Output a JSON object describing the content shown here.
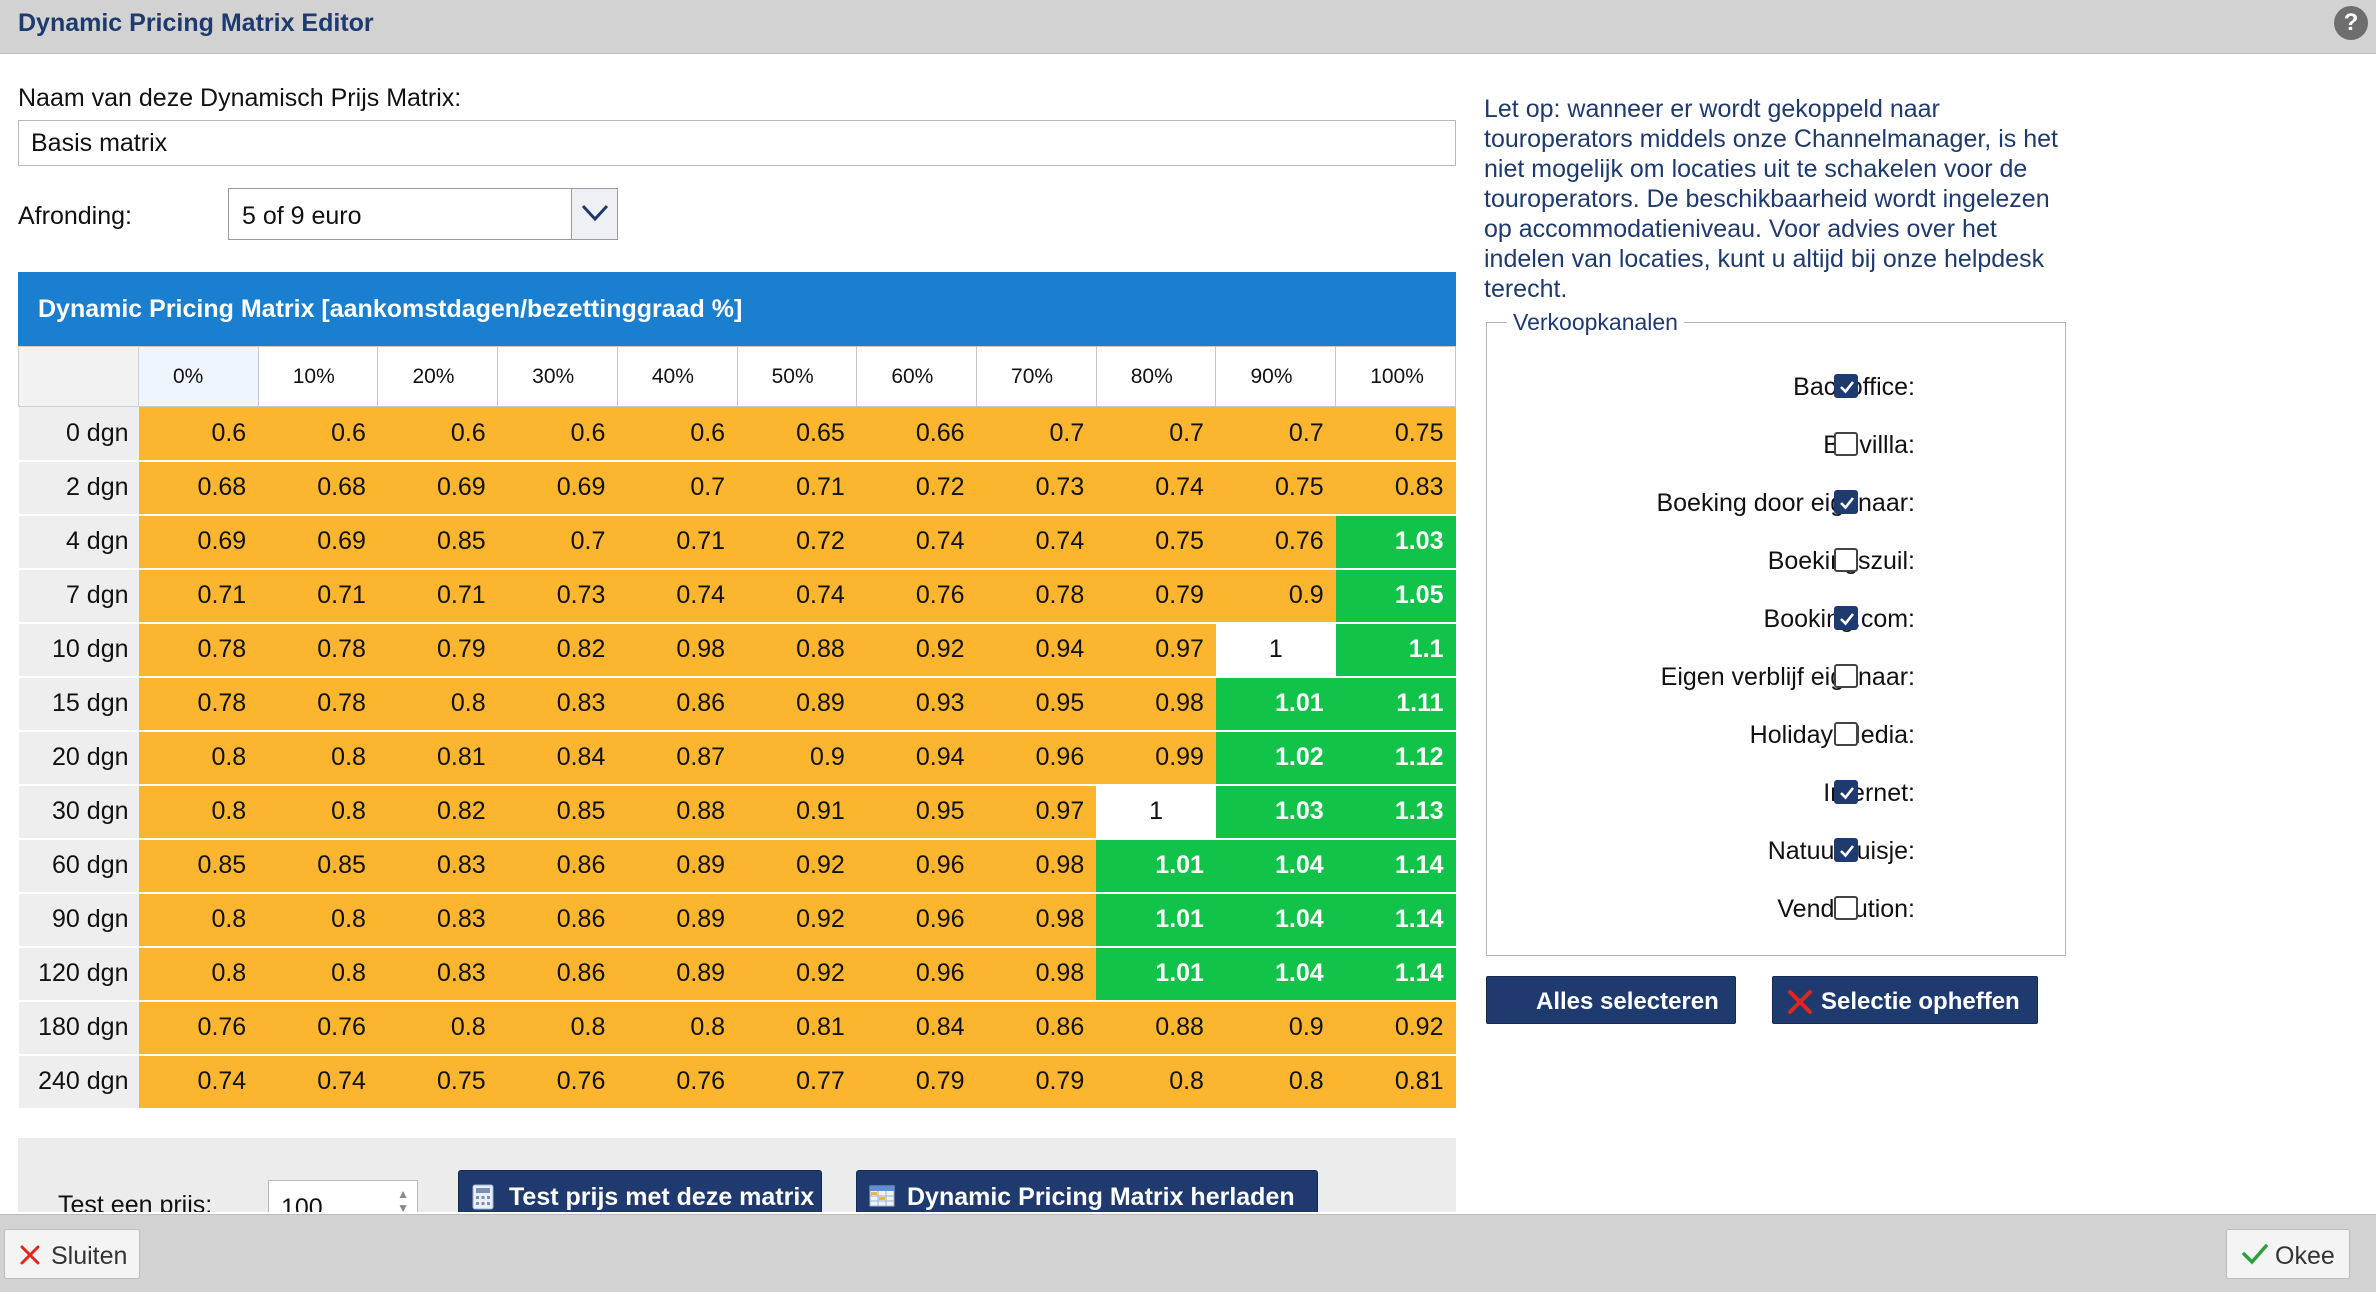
{
  "window": {
    "title": "Dynamic Pricing Matrix Editor",
    "help_label": "?"
  },
  "form": {
    "name_label": "Naam van deze Dynamisch Prijs Matrix:",
    "name_value": "Basis matrix",
    "rounding_label": "Afronding:",
    "rounding_value": "5 of 9 euro"
  },
  "matrix": {
    "title": "Dynamic Pricing Matrix [aankomstdagen/bezettinggraad %]",
    "columns": [
      "0%",
      "10%",
      "20%",
      "30%",
      "40%",
      "50%",
      "60%",
      "70%",
      "80%",
      "90%",
      "100%"
    ],
    "rows": [
      {
        "label": "0 dgn",
        "values": [
          "0.6",
          "0.6",
          "0.6",
          "0.6",
          "0.6",
          "0.65",
          "0.66",
          "0.7",
          "0.7",
          "0.7",
          "0.75"
        ]
      },
      {
        "label": "2 dgn",
        "values": [
          "0.68",
          "0.68",
          "0.69",
          "0.69",
          "0.7",
          "0.71",
          "0.72",
          "0.73",
          "0.74",
          "0.75",
          "0.83"
        ]
      },
      {
        "label": "4 dgn",
        "values": [
          "0.69",
          "0.69",
          "0.85",
          "0.7",
          "0.71",
          "0.72",
          "0.74",
          "0.74",
          "0.75",
          "0.76",
          "1.03"
        ]
      },
      {
        "label": "7 dgn",
        "values": [
          "0.71",
          "0.71",
          "0.71",
          "0.73",
          "0.74",
          "0.74",
          "0.76",
          "0.78",
          "0.79",
          "0.9",
          "1.05"
        ]
      },
      {
        "label": "10 dgn",
        "values": [
          "0.78",
          "0.78",
          "0.79",
          "0.82",
          "0.98",
          "0.88",
          "0.92",
          "0.94",
          "0.97",
          "1",
          "1.1"
        ]
      },
      {
        "label": "15 dgn",
        "values": [
          "0.78",
          "0.78",
          "0.8",
          "0.83",
          "0.86",
          "0.89",
          "0.93",
          "0.95",
          "0.98",
          "1.01",
          "1.11"
        ]
      },
      {
        "label": "20 dgn",
        "values": [
          "0.8",
          "0.8",
          "0.81",
          "0.84",
          "0.87",
          "0.9",
          "0.94",
          "0.96",
          "0.99",
          "1.02",
          "1.12"
        ]
      },
      {
        "label": "30 dgn",
        "values": [
          "0.8",
          "0.8",
          "0.82",
          "0.85",
          "0.88",
          "0.91",
          "0.95",
          "0.97",
          "1",
          "1.03",
          "1.13"
        ]
      },
      {
        "label": "60 dgn",
        "values": [
          "0.85",
          "0.85",
          "0.83",
          "0.86",
          "0.89",
          "0.92",
          "0.96",
          "0.98",
          "1.01",
          "1.04",
          "1.14"
        ]
      },
      {
        "label": "90 dgn",
        "values": [
          "0.8",
          "0.8",
          "0.83",
          "0.86",
          "0.89",
          "0.92",
          "0.96",
          "0.98",
          "1.01",
          "1.04",
          "1.14"
        ]
      },
      {
        "label": "120 dgn",
        "values": [
          "0.8",
          "0.8",
          "0.83",
          "0.86",
          "0.89",
          "0.92",
          "0.96",
          "0.98",
          "1.01",
          "1.04",
          "1.14"
        ]
      },
      {
        "label": "180 dgn",
        "values": [
          "0.76",
          "0.76",
          "0.8",
          "0.8",
          "0.8",
          "0.81",
          "0.84",
          "0.86",
          "0.88",
          "0.9",
          "0.92"
        ]
      },
      {
        "label": "240 dgn",
        "values": [
          "0.74",
          "0.74",
          "0.75",
          "0.76",
          "0.76",
          "0.77",
          "0.79",
          "0.79",
          "0.8",
          "0.8",
          "0.81"
        ]
      }
    ],
    "colors": {
      "below": "#fbb52f",
      "neutral": "#ffffff",
      "above": "#12c34a",
      "header": "#1a7fce"
    }
  },
  "test": {
    "label": "Test een prijs:",
    "value": "100",
    "test_button": "Test prijs met deze matrix",
    "reload_button": "Dynamic Pricing Matrix herladen"
  },
  "info": {
    "note": "Let op: wanneer er wordt gekoppeld naar touroperators middels onze Channelmanager, is het niet mogelijk om locaties uit te schakelen voor de touroperators. De beschikbaarheid wordt ingelezen op accommodatieniveau. Voor advies over het indelen van locaties, kunt u altijd bij onze helpdesk terecht."
  },
  "channels": {
    "legend": "Verkoopkanalen",
    "items": [
      {
        "label": "Backoffice:",
        "checked": true
      },
      {
        "label": "Belvillla:",
        "checked": false
      },
      {
        "label": "Boeking door eigenaar:",
        "checked": true
      },
      {
        "label": "Boekingszuil:",
        "checked": false
      },
      {
        "label": "Booking.com:",
        "checked": true
      },
      {
        "label": "Eigen verblijf eigenaar:",
        "checked": false
      },
      {
        "label": "Holiday Media:",
        "checked": false
      },
      {
        "label": "Internet:",
        "checked": true
      },
      {
        "label": "Natuurhuisje:",
        "checked": true
      },
      {
        "label": "Vendolution:",
        "checked": false
      }
    ],
    "select_all": "Alles selecteren",
    "clear_selection": "Selectie opheffen"
  },
  "footer": {
    "close": "Sluiten",
    "ok": "Okee"
  }
}
